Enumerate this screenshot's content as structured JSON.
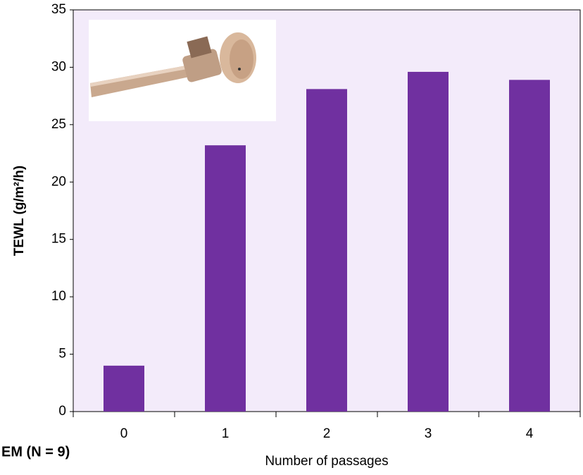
{
  "chart_data": {
    "type": "bar",
    "y_label": "TEWL (g/m²/h)",
    "x_label": "Number of passages",
    "note": "EM (N = 9)",
    "categories": [
      "0",
      "1",
      "2",
      "3",
      "4"
    ],
    "values": [
      4.0,
      23.2,
      28.1,
      29.6,
      28.9
    ],
    "color": "#7030a0",
    "ylim": [
      0,
      35
    ],
    "yticks": [
      0,
      5,
      10,
      15,
      20,
      25,
      30,
      35
    ],
    "grid": false
  }
}
